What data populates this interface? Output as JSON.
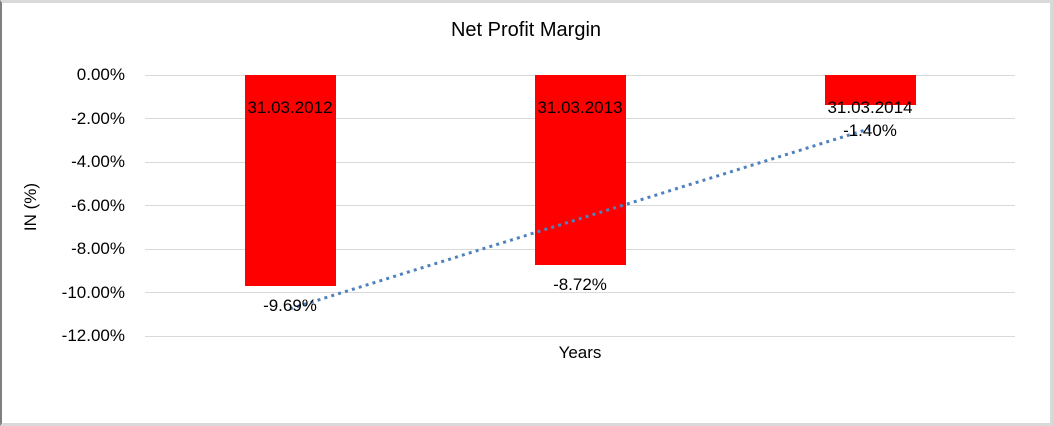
{
  "chart_data": {
    "type": "bar",
    "title": "Net Profit Margin",
    "categories": [
      "31.03.2012",
      "31.03.2013",
      "31.03.2014"
    ],
    "values": [
      -9.69,
      -8.72,
      -1.4
    ],
    "value_labels": [
      "-9.69%",
      "-8.72%",
      "-1.40%"
    ],
    "xlabel": "Years",
    "ylabel": "IN (%)",
    "ylim": [
      -12,
      0
    ],
    "ytick_labels": [
      "0.00%",
      "-2.00%",
      "-4.00%",
      "-6.00%",
      "-8.00%",
      "-10.00%",
      "-12.00%"
    ],
    "grid": true,
    "legend": "none",
    "bar_color": "#FF0000",
    "trendline": {
      "type": "linear",
      "style": "dotted",
      "color": "#4F81BD",
      "values": [
        -10.75,
        -6.6,
        -2.46
      ]
    },
    "colors": {
      "grid": "#D9D9D9",
      "text": "#000000",
      "background": "#FFFFFF",
      "frame_light": "#D9D9D9",
      "frame_dark": "#7F7F7F"
    }
  }
}
